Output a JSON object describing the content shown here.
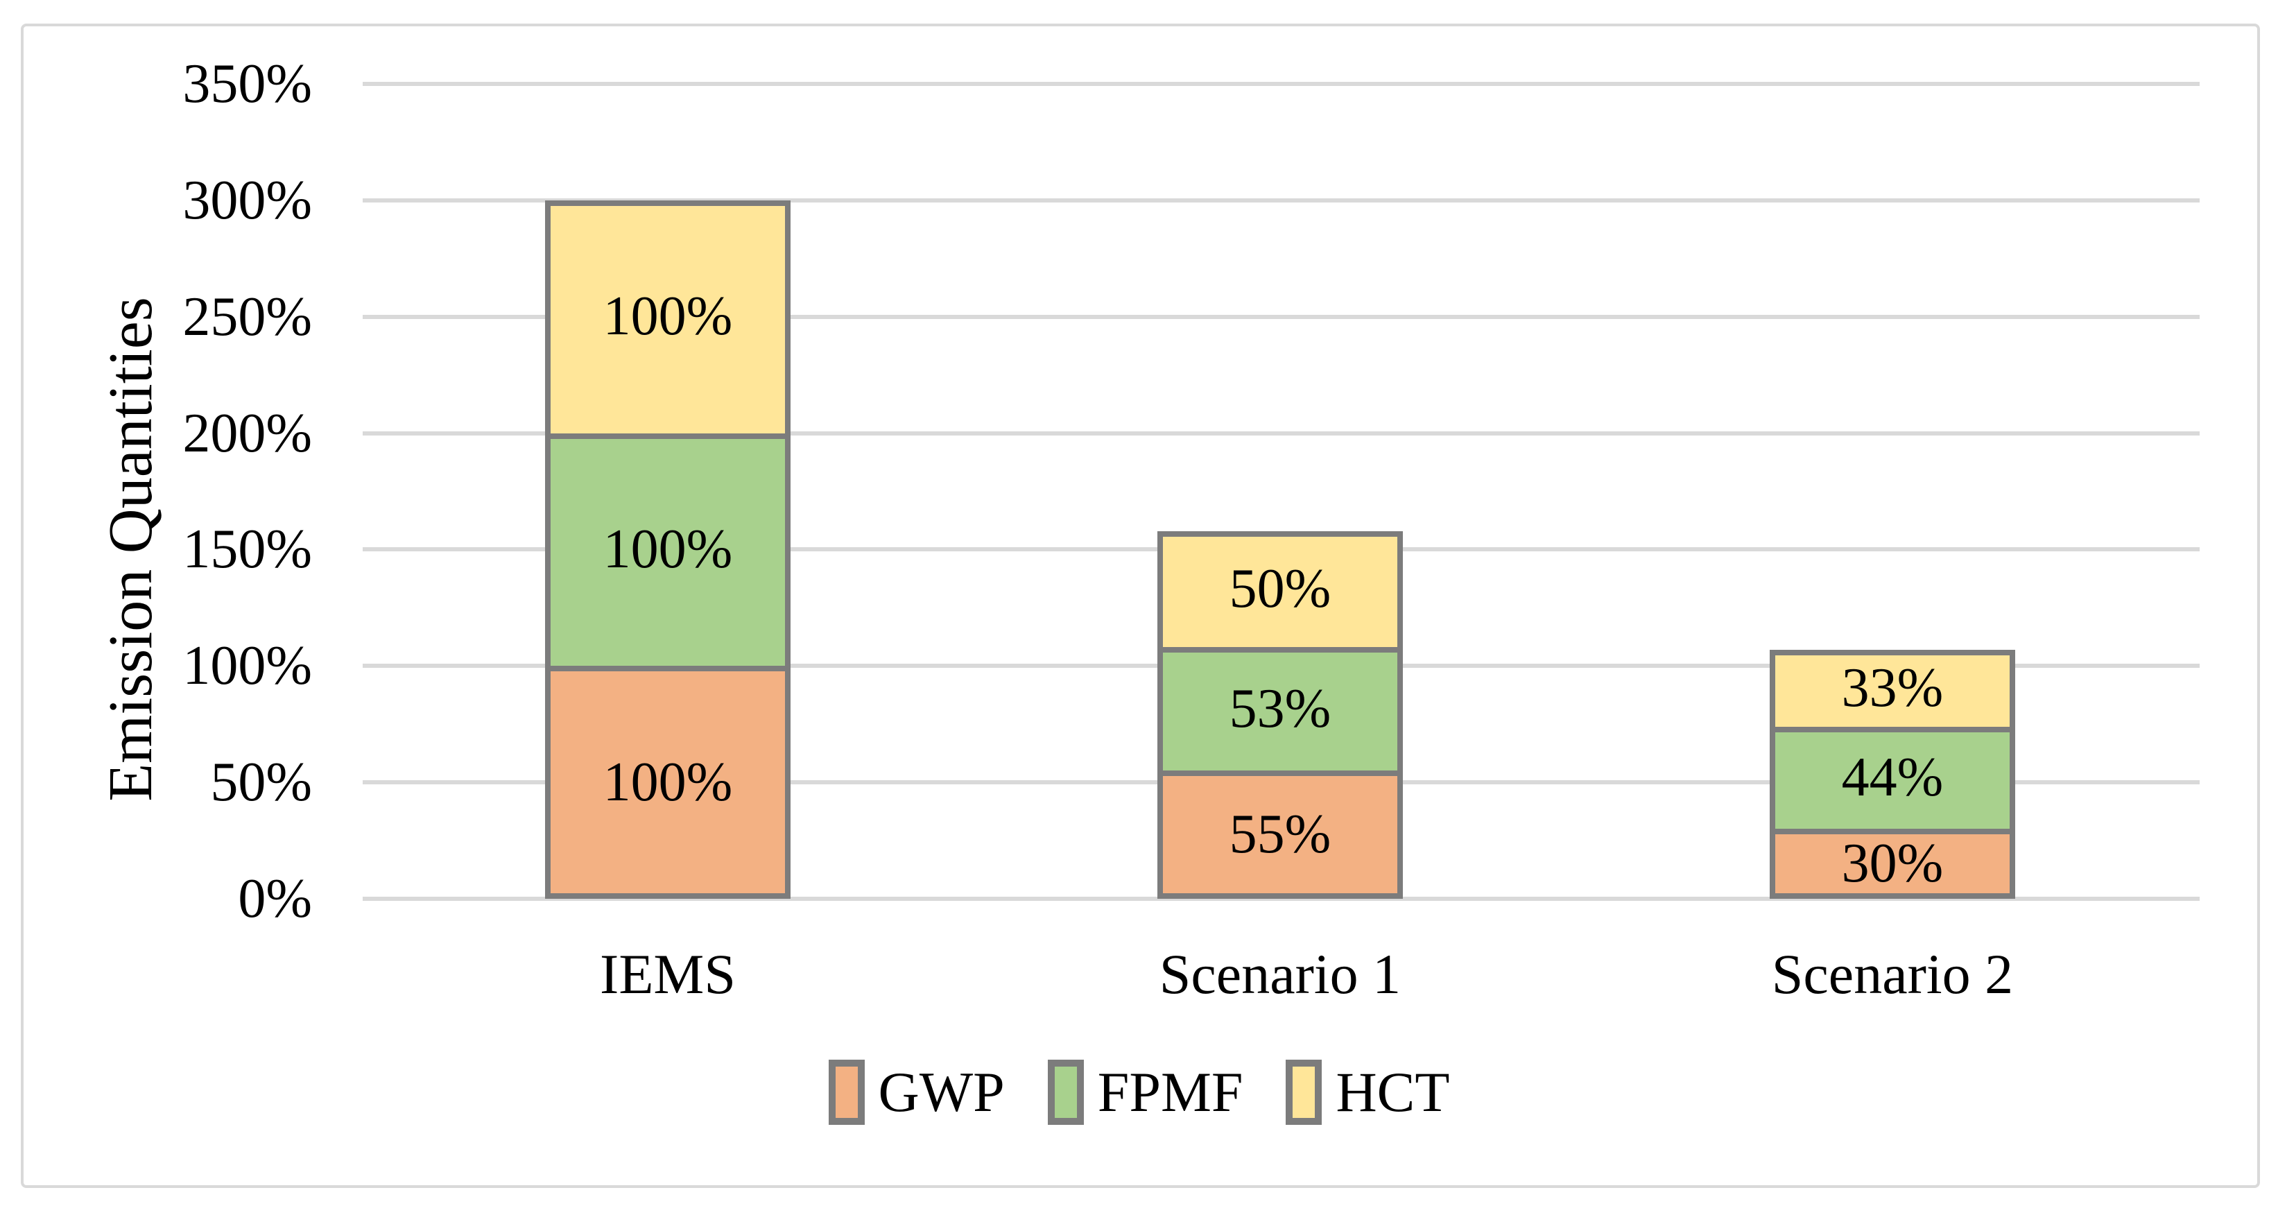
{
  "chart_data": {
    "type": "bar",
    "stacked": true,
    "title": "",
    "xlabel": "",
    "ylabel": "Emission Quantities",
    "categories": [
      "IEMS",
      "Scenario 1",
      "Scenario 2"
    ],
    "series": [
      {
        "name": "GWP",
        "color": "#F3B183",
        "values": [
          100,
          55,
          30
        ],
        "labels": [
          "100%",
          "55%",
          "30%"
        ]
      },
      {
        "name": "FPMF",
        "color": "#A8D18D",
        "values": [
          100,
          53,
          44
        ],
        "labels": [
          "100%",
          "53%",
          "44%"
        ]
      },
      {
        "name": "HCT",
        "color": "#FFE699",
        "values": [
          100,
          50,
          33
        ],
        "labels": [
          "100%",
          "50%",
          "33%"
        ]
      }
    ],
    "y_ticks": [
      {
        "value": 0,
        "label": "0%"
      },
      {
        "value": 50,
        "label": "50%"
      },
      {
        "value": 100,
        "label": "100%"
      },
      {
        "value": 150,
        "label": "150%"
      },
      {
        "value": 200,
        "label": "200%"
      },
      {
        "value": 250,
        "label": "250%"
      },
      {
        "value": 300,
        "label": "300%"
      },
      {
        "value": 350,
        "label": "350%"
      }
    ],
    "ylim": [
      0,
      350
    ],
    "grid": true,
    "legend_position": "bottom",
    "colors": {
      "background": "#FFFFFF",
      "gridline": "#D9D9D9",
      "figure_border": "#D9D9D9",
      "bar_border": "#7C7C7C",
      "text": "#000000"
    }
  }
}
